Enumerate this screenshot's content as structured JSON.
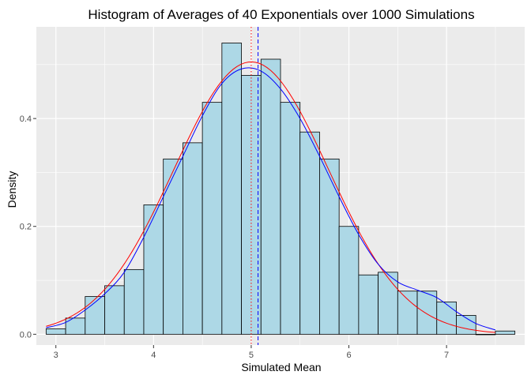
{
  "chart_data": {
    "type": "bar",
    "title": "Histogram of Averages of 40 Exponentials over 1000 Simulations",
    "xlabel": "Simulated Mean",
    "ylabel": "Density",
    "xlim": [
      2.8,
      7.8
    ],
    "ylim": [
      -0.02,
      0.57
    ],
    "x_ticks": [
      3,
      4,
      5,
      6,
      7
    ],
    "y_ticks": [
      0.0,
      0.2,
      0.4
    ],
    "y_tick_labels": [
      "0.0",
      "0.2",
      "0.4"
    ],
    "grid": true,
    "bins": [
      {
        "x0": 2.9,
        "x1": 3.1,
        "density": 0.01
      },
      {
        "x0": 3.1,
        "x1": 3.3,
        "density": 0.03
      },
      {
        "x0": 3.3,
        "x1": 3.5,
        "density": 0.07
      },
      {
        "x0": 3.5,
        "x1": 3.7,
        "density": 0.09
      },
      {
        "x0": 3.7,
        "x1": 3.9,
        "density": 0.12
      },
      {
        "x0": 3.9,
        "x1": 4.1,
        "density": 0.24
      },
      {
        "x0": 4.1,
        "x1": 4.3,
        "density": 0.325
      },
      {
        "x0": 4.3,
        "x1": 4.5,
        "density": 0.355
      },
      {
        "x0": 4.5,
        "x1": 4.7,
        "density": 0.43
      },
      {
        "x0": 4.7,
        "x1": 4.9,
        "density": 0.54
      },
      {
        "x0": 4.9,
        "x1": 5.1,
        "density": 0.48
      },
      {
        "x0": 5.1,
        "x1": 5.3,
        "density": 0.51
      },
      {
        "x0": 5.3,
        "x1": 5.5,
        "density": 0.43
      },
      {
        "x0": 5.5,
        "x1": 5.7,
        "density": 0.375
      },
      {
        "x0": 5.7,
        "x1": 5.9,
        "density": 0.325
      },
      {
        "x0": 5.9,
        "x1": 6.1,
        "density": 0.2
      },
      {
        "x0": 6.1,
        "x1": 6.3,
        "density": 0.11
      },
      {
        "x0": 6.3,
        "x1": 6.5,
        "density": 0.115
      },
      {
        "x0": 6.5,
        "x1": 6.7,
        "density": 0.08
      },
      {
        "x0": 6.7,
        "x1": 6.9,
        "density": 0.08
      },
      {
        "x0": 6.9,
        "x1": 7.1,
        "density": 0.06
      },
      {
        "x0": 7.1,
        "x1": 7.3,
        "density": 0.035
      },
      {
        "x0": 7.3,
        "x1": 7.5,
        "density": 0.0
      },
      {
        "x0": 7.5,
        "x1": 7.7,
        "density": 0.006
      }
    ],
    "vertical_lines": [
      {
        "x": 5.0,
        "color": "#ff0000",
        "style": "dotted"
      },
      {
        "x": 5.07,
        "color": "#0000ff",
        "style": "dashed"
      }
    ],
    "curves": [
      {
        "kind": "normal",
        "color": "#ff0000",
        "mean": 5.0,
        "sd": 0.79,
        "x_range": [
          2.9,
          7.5
        ]
      },
      {
        "kind": "density",
        "color": "#0000ff",
        "points": [
          [
            2.9,
            0.012
          ],
          [
            3.1,
            0.022
          ],
          [
            3.3,
            0.045
          ],
          [
            3.5,
            0.075
          ],
          [
            3.7,
            0.115
          ],
          [
            3.9,
            0.18
          ],
          [
            4.1,
            0.255
          ],
          [
            4.3,
            0.33
          ],
          [
            4.5,
            0.405
          ],
          [
            4.7,
            0.465
          ],
          [
            4.9,
            0.492
          ],
          [
            5.1,
            0.488
          ],
          [
            5.3,
            0.455
          ],
          [
            5.5,
            0.4
          ],
          [
            5.7,
            0.33
          ],
          [
            5.9,
            0.255
          ],
          [
            6.1,
            0.185
          ],
          [
            6.3,
            0.13
          ],
          [
            6.5,
            0.097
          ],
          [
            6.7,
            0.082
          ],
          [
            6.9,
            0.068
          ],
          [
            7.1,
            0.042
          ],
          [
            7.3,
            0.02
          ],
          [
            7.5,
            0.008
          ]
        ]
      }
    ],
    "colors": {
      "panel": "#ebebeb",
      "grid": "#ffffff",
      "bar_fill": "#add8e6",
      "bar_stroke": "#000000",
      "tick": "#333333"
    }
  }
}
